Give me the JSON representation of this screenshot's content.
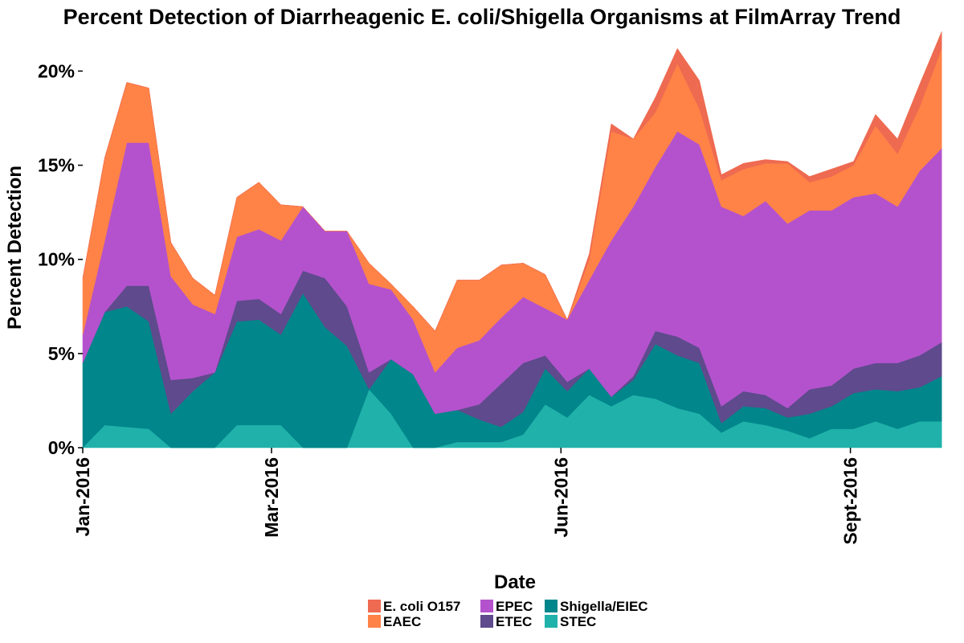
{
  "chart_data": {
    "type": "area",
    "stacked": true,
    "title": "Percent Detection of Diarrheagenic E. coli/Shigella Organisms at FilmArray Trend",
    "xlabel": "Date",
    "ylabel": "Percent Detection",
    "x_ticks": [
      {
        "label": "Jan-2016",
        "date": "2016-01-01"
      },
      {
        "label": "Mar-2016",
        "date": "2016-03-01"
      },
      {
        "label": "Jun-2016",
        "date": "2016-06-01"
      },
      {
        "label": "Sept-2016",
        "date": "2016-09-01"
      }
    ],
    "x_range": [
      "2016-01-01",
      "2016-10-02"
    ],
    "y_ticks": [
      "0%",
      "5%",
      "10%",
      "15%",
      "20%"
    ],
    "ylim": [
      0,
      21
    ],
    "grid": false,
    "legend_position": "bottom",
    "dates": [
      "2016-01-01",
      "2016-01-08",
      "2016-01-15",
      "2016-01-22",
      "2016-01-29",
      "2016-02-05",
      "2016-02-12",
      "2016-02-19",
      "2016-02-26",
      "2016-03-04",
      "2016-03-11",
      "2016-03-18",
      "2016-03-25",
      "2016-04-01",
      "2016-04-08",
      "2016-04-15",
      "2016-04-22",
      "2016-04-29",
      "2016-05-06",
      "2016-05-13",
      "2016-05-20",
      "2016-05-27",
      "2016-06-03",
      "2016-06-10",
      "2016-06-17",
      "2016-06-24",
      "2016-07-01",
      "2016-07-08",
      "2016-07-15",
      "2016-07-22",
      "2016-07-29",
      "2016-08-05",
      "2016-08-12",
      "2016-08-19",
      "2016-08-26",
      "2016-09-02",
      "2016-09-09",
      "2016-09-16",
      "2016-09-23",
      "2016-09-30"
    ],
    "series": [
      {
        "name": "STEC",
        "color": "#20B2AA",
        "values": [
          0.0,
          1.2,
          1.1,
          1.0,
          0.0,
          0.0,
          0.0,
          1.2,
          1.2,
          1.2,
          0.0,
          0.0,
          0.0,
          3.1,
          1.8,
          0.0,
          0.0,
          0.3,
          0.3,
          0.3,
          0.7,
          2.3,
          1.6,
          2.8,
          2.2,
          2.8,
          2.6,
          2.1,
          1.8,
          0.8,
          1.4,
          1.2,
          0.9,
          0.5,
          1.0,
          1.0,
          1.4,
          1.0,
          1.4,
          1.4
        ]
      },
      {
        "name": "Shigella/EIEC",
        "color": "#00868B",
        "values": [
          4.5,
          6.0,
          6.4,
          5.7,
          1.8,
          3.0,
          4.0,
          5.5,
          5.6,
          4.8,
          8.2,
          6.4,
          5.4,
          0.0,
          2.9,
          3.9,
          1.8,
          1.7,
          1.2,
          0.8,
          1.2,
          1.9,
          1.4,
          1.4,
          0.5,
          0.8,
          2.9,
          2.8,
          2.7,
          0.5,
          0.8,
          0.9,
          0.7,
          1.3,
          1.2,
          1.9,
          1.7,
          2.0,
          1.8,
          2.4
        ]
      },
      {
        "name": "ETEC",
        "color": "#5E4A8C",
        "values": [
          0.0,
          0.0,
          1.1,
          1.9,
          1.8,
          0.7,
          0.0,
          1.1,
          1.1,
          1.1,
          1.2,
          2.6,
          2.1,
          0.9,
          0.0,
          0.0,
          0.0,
          0.0,
          0.8,
          2.3,
          2.6,
          0.7,
          0.5,
          0.0,
          0.0,
          0.2,
          0.7,
          1.0,
          0.8,
          0.9,
          0.8,
          0.7,
          0.5,
          1.3,
          1.1,
          1.3,
          1.4,
          1.5,
          1.7,
          1.8
        ]
      },
      {
        "name": "EPEC",
        "color": "#B452CD",
        "values": [
          1.5,
          3.8,
          7.6,
          7.6,
          5.5,
          3.9,
          3.1,
          3.4,
          3.7,
          3.9,
          3.4,
          2.5,
          4.0,
          4.7,
          3.7,
          2.9,
          2.2,
          3.3,
          3.4,
          3.5,
          3.5,
          2.5,
          3.3,
          4.7,
          8.3,
          9.0,
          8.7,
          10.9,
          10.8,
          10.6,
          9.3,
          10.3,
          9.8,
          9.5,
          9.3,
          9.1,
          9.0,
          8.3,
          9.8,
          10.3
        ]
      },
      {
        "name": "EAEC",
        "color": "#FF8247",
        "values": [
          3.0,
          4.4,
          3.2,
          2.9,
          1.8,
          1.4,
          1.0,
          2.1,
          2.5,
          1.9,
          0.0,
          0.0,
          0.0,
          1.1,
          0.3,
          0.7,
          2.2,
          3.6,
          3.2,
          2.8,
          1.8,
          1.8,
          0.0,
          1.1,
          5.8,
          3.6,
          2.9,
          3.6,
          1.9,
          1.4,
          2.5,
          2.0,
          3.2,
          1.5,
          1.8,
          1.7,
          3.6,
          2.8,
          3.4,
          5.3
        ]
      },
      {
        "name": "E. coli O157",
        "color": "#EE6A50",
        "values": [
          0.0,
          0.0,
          0.0,
          0.0,
          0.0,
          0.0,
          0.0,
          0.0,
          0.0,
          0.0,
          0.0,
          0.0,
          0.0,
          0.0,
          0.0,
          0.0,
          0.0,
          0.0,
          0.0,
          0.0,
          0.0,
          0.0,
          0.0,
          0.3,
          0.4,
          0.0,
          0.8,
          0.8,
          1.5,
          0.3,
          0.3,
          0.2,
          0.1,
          0.3,
          0.4,
          0.2,
          0.6,
          0.8,
          1.2,
          0.9
        ]
      }
    ],
    "legend": [
      {
        "label": "E. coli O157",
        "color": "#EE6A50"
      },
      {
        "label": "EAEC",
        "color": "#FF8247"
      },
      {
        "label": "EPEC",
        "color": "#B452CD"
      },
      {
        "label": "ETEC",
        "color": "#5E4A8C"
      },
      {
        "label": "Shigella/EIEC",
        "color": "#00868B"
      },
      {
        "label": "STEC",
        "color": "#20B2AA"
      }
    ]
  }
}
